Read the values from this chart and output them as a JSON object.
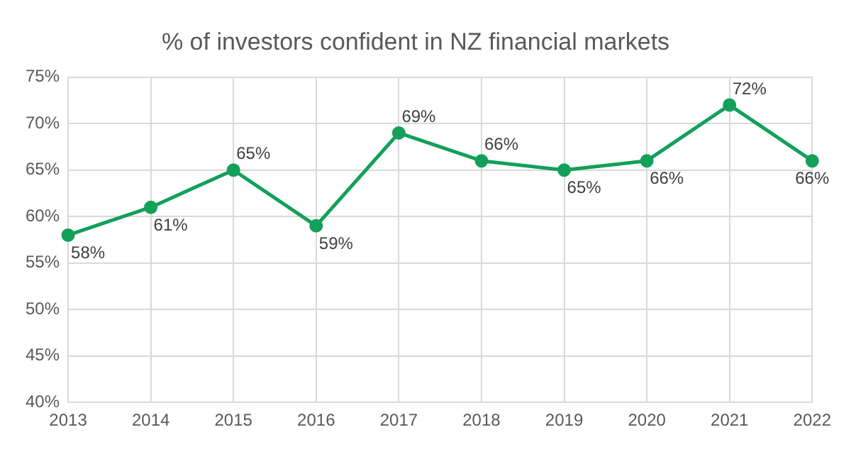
{
  "chart_data": {
    "type": "line",
    "title": "% of investors confident in NZ financial markets",
    "categories": [
      "2013",
      "2014",
      "2015",
      "2016",
      "2017",
      "2018",
      "2019",
      "2020",
      "2021",
      "2022"
    ],
    "series": [
      {
        "color": "#13a05a",
        "values": [
          58,
          61,
          65,
          59,
          69,
          66,
          65,
          66,
          72,
          66
        ],
        "value_labels": [
          "58%",
          "61%",
          "65%",
          "59%",
          "69%",
          "66%",
          "65%",
          "66%",
          "72%",
          "66%"
        ]
      }
    ],
    "ylim": [
      40,
      75
    ],
    "yticks": [
      {
        "value": 40,
        "label": "40%"
      },
      {
        "value": 45,
        "label": "45%"
      },
      {
        "value": 50,
        "label": "50%"
      },
      {
        "value": 55,
        "label": "55%"
      },
      {
        "value": 60,
        "label": "60%"
      },
      {
        "value": 65,
        "label": "65%"
      },
      {
        "value": 70,
        "label": "70%"
      },
      {
        "value": 75,
        "label": "75%"
      }
    ],
    "grid": true,
    "marker": "circle",
    "line_style": "solid",
    "legend": false
  }
}
